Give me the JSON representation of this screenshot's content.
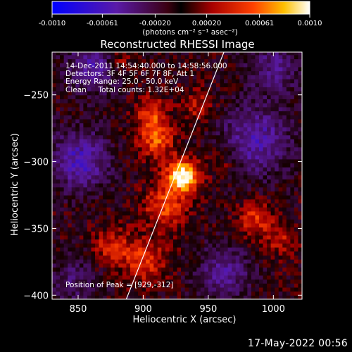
{
  "chart_data": {
    "type": "heatmap",
    "title": "Reconstructed RHESSI Image",
    "xlabel": "Heliocentric X (arcsec)",
    "ylabel": "Heliocentric Y (arcsec)",
    "xlim": [
      830,
      1022
    ],
    "ylim": [
      -403,
      -218
    ],
    "x_ticks": [
      850,
      900,
      950,
      1000
    ],
    "y_ticks": [
      -250,
      -300,
      -350,
      -400
    ],
    "colorbar": {
      "ticks": [
        "-0.0010",
        "-0.00061",
        "-0.00020",
        "0.00020",
        "0.00061",
        "0.0010"
      ],
      "range": [
        -0.001,
        0.001
      ],
      "unit_label": "(photons cm⁻² s⁻¹ asec⁻²)",
      "colormap": "blue-purple-red-yellow-white"
    },
    "annotations": [
      "14-Dec-2011 14:54:40.000 to 14:58:56.000",
      "Detectors: 3F 4F 5F 6F 7F 8F, Att 1",
      "Energy Range: 25.0 - 50.0 keV",
      "Clean     Total counts: 1.32E+04"
    ],
    "peak_label": "Position of Peak = [929,-312]",
    "peak": [
      929,
      -312
    ],
    "limb_line": [
      [
        887,
        -403
      ],
      [
        962,
        -218
      ]
    ]
  },
  "footer": {
    "date": "17-May-2022 00:56"
  }
}
